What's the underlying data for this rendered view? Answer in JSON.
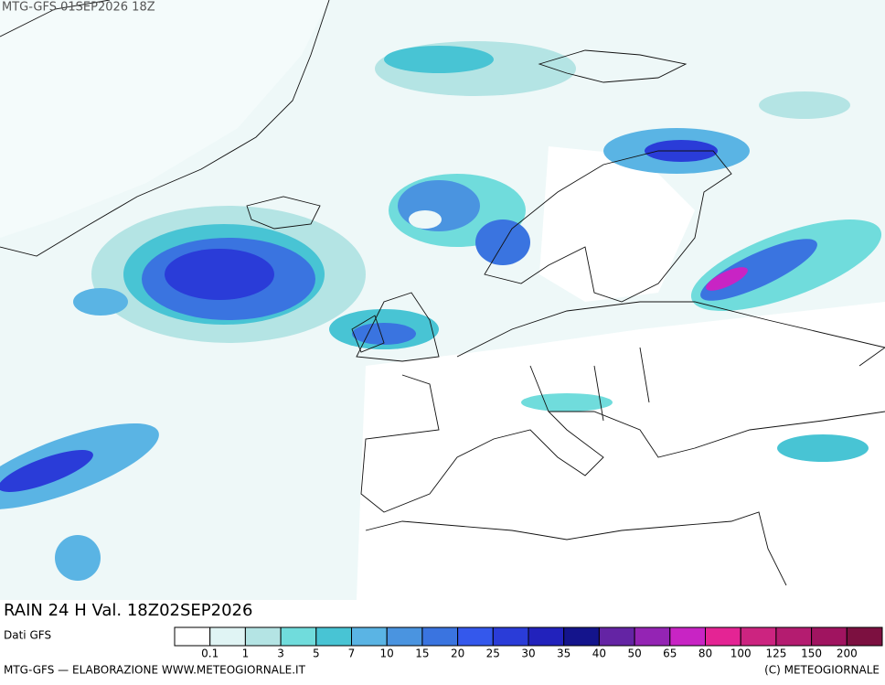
{
  "header": {
    "title": "MTG-GFS 01SEP2026 18Z"
  },
  "map": {
    "caption": "RAIN 24 H Val. 18Z02SEP2026"
  },
  "legend": {
    "source": "Dati GFS",
    "colors": [
      "#ffffff",
      "#e0f4f4",
      "#b4e4e4",
      "#70dcdc",
      "#48c4d4",
      "#5ab4e4",
      "#4a94e0",
      "#3a74e0",
      "#3458ec",
      "#2a3cd8",
      "#2222bc",
      "#14148c",
      "#6424a4",
      "#9424b4",
      "#c824c4",
      "#e42494",
      "#cc2480",
      "#b41c70",
      "#a01460",
      "#7c1040"
    ],
    "labels": [
      0.1,
      1,
      3,
      5,
      7,
      10,
      15,
      20,
      25,
      30,
      35,
      40,
      50,
      65,
      80,
      100,
      125,
      150,
      200
    ]
  },
  "footer": {
    "left": "MTG-GFS — ELABORAZIONE WWW.METEOGIORNALE.IT",
    "right": "(C) METEOGIORNALE"
  }
}
